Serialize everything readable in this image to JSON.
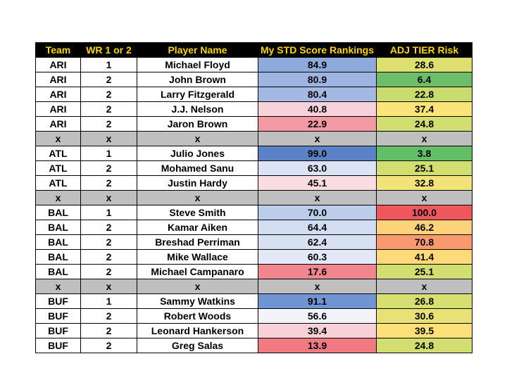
{
  "table": {
    "headers": [
      "Team",
      "WR 1 or 2",
      "Player Name",
      "My STD Score Rankings",
      "ADJ TIER Risk"
    ],
    "rows": [
      {
        "team": "ARI",
        "wr": "1",
        "player": "Michael Floyd",
        "std": "84.9",
        "std_color": "#8eaadb",
        "risk": "28.6",
        "risk_color": "#dde070"
      },
      {
        "team": "ARI",
        "wr": "2",
        "player": "John Brown",
        "std": "80.9",
        "std_color": "#9db5e0",
        "risk": "6.4",
        "risk_color": "#6ebd6a"
      },
      {
        "team": "ARI",
        "wr": "2",
        "player": "Larry Fitzgerald",
        "std": "80.4",
        "std_color": "#a3b9e2",
        "risk": "22.8",
        "risk_color": "#c9dc6e"
      },
      {
        "team": "ARI",
        "wr": "2",
        "player": "J.J. Nelson",
        "std": "40.8",
        "std_color": "#f8d2da",
        "risk": "37.4",
        "risk_color": "#fde47a"
      },
      {
        "team": "ARI",
        "wr": "2",
        "player": "Jaron Brown",
        "std": "22.9",
        "std_color": "#f39aa4",
        "risk": "24.8",
        "risk_color": "#d2de70"
      },
      {
        "sep": true,
        "team": "x",
        "wr": "x",
        "player": "x",
        "std": "x",
        "risk": "x"
      },
      {
        "team": "ATL",
        "wr": "1",
        "player": "Julio Jones",
        "std": "99.0",
        "std_color": "#5b82c6",
        "risk": "3.8",
        "risk_color": "#63be68"
      },
      {
        "team": "ATL",
        "wr": "2",
        "player": "Mohamed Sanu",
        "std": "63.0",
        "std_color": "#dbe3f4",
        "risk": "25.1",
        "risk_color": "#d2de70"
      },
      {
        "team": "ATL",
        "wr": "2",
        "player": "Justin Hardy",
        "std": "45.1",
        "std_color": "#f9dde3",
        "risk": "32.8",
        "risk_color": "#f2e27a"
      },
      {
        "sep": true,
        "team": "x",
        "wr": "x",
        "player": "x",
        "std": "x",
        "risk": "x"
      },
      {
        "team": "BAL",
        "wr": "1",
        "player": "Steve Smith",
        "std": "70.0",
        "std_color": "#bccdeb",
        "risk": "100.0",
        "risk_color": "#f0575c"
      },
      {
        "team": "BAL",
        "wr": "2",
        "player": "Kamar Aiken",
        "std": "64.4",
        "std_color": "#d2ddf2",
        "risk": "46.2",
        "risk_color": "#fdd27a"
      },
      {
        "team": "BAL",
        "wr": "2",
        "player": "Breshad Perriman",
        "std": "62.4",
        "std_color": "#d8e1f4",
        "risk": "70.8",
        "risk_color": "#f99a6e"
      },
      {
        "team": "BAL",
        "wr": "2",
        "player": "Mike Wallace",
        "std": "60.3",
        "std_color": "#e2e8f6",
        "risk": "41.4",
        "risk_color": "#fdda7a"
      },
      {
        "team": "BAL",
        "wr": "2",
        "player": "Michael Campanaro",
        "std": "17.6",
        "std_color": "#f2868e",
        "risk": "25.1",
        "risk_color": "#d2de70"
      },
      {
        "sep": true,
        "team": "x",
        "wr": "x",
        "player": "x",
        "std": "x",
        "risk": "x"
      },
      {
        "team": "BUF",
        "wr": "1",
        "player": "Sammy Watkins",
        "std": "91.1",
        "std_color": "#7195d2",
        "risk": "26.8",
        "risk_color": "#d8df72"
      },
      {
        "team": "BUF",
        "wr": "2",
        "player": "Robert Woods",
        "std": "56.6",
        "std_color": "#f2f4fa",
        "risk": "30.6",
        "risk_color": "#e8e176"
      },
      {
        "team": "BUF",
        "wr": "2",
        "player": "Leonard Hankerson",
        "std": "39.4",
        "std_color": "#f8d0d7",
        "risk": "39.5",
        "risk_color": "#fde07a"
      },
      {
        "team": "BUF",
        "wr": "2",
        "player": "Greg Salas",
        "std": "13.9",
        "std_color": "#f17a82",
        "risk": "24.8",
        "risk_color": "#d2de70"
      }
    ]
  }
}
